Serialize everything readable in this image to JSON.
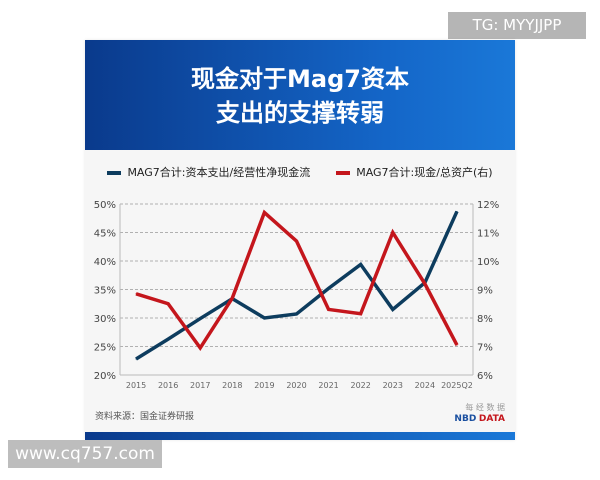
{
  "watermarks": {
    "top": "TG: MYYJJPP",
    "bottom": "www.cq757.com"
  },
  "chart_data": {
    "type": "line",
    "title_line1": "现金对于Mag7资本",
    "title_line2": "支出的支撑转弱",
    "categories": [
      "2015",
      "2016",
      "2017",
      "2018",
      "2019",
      "2020",
      "2021",
      "2022",
      "2023",
      "2024",
      "2025Q2"
    ],
    "series": [
      {
        "name": "MAG7合计:资本支出/经营性净现金流",
        "axis": "left",
        "color": "#0d3c5e",
        "values": [
          22.8,
          26.3,
          29.9,
          33.4,
          30.0,
          30.7,
          35.2,
          39.4,
          31.5,
          36.2,
          48.7
        ]
      },
      {
        "name": "MAG7合计:现金/总资产(右)",
        "axis": "right",
        "color": "#c4161c",
        "values": [
          8.85,
          8.5,
          6.95,
          8.7,
          11.7,
          10.7,
          8.3,
          8.15,
          11.0,
          9.2,
          7.05
        ]
      }
    ],
    "ylim_left": [
      20,
      50
    ],
    "yticks_left": [
      "20%",
      "25%",
      "30%",
      "35%",
      "40%",
      "45%",
      "50%"
    ],
    "ylim_right": [
      6,
      12
    ],
    "yticks_right": [
      "6%",
      "7%",
      "8%",
      "9%",
      "10%",
      "11%",
      "12%"
    ],
    "grid": "horizontal dashed",
    "legend": "top",
    "source": "资料来源：国金证券研报"
  },
  "brand": {
    "cn": "每 经 数 据",
    "nbd": "NBD",
    "data": "DATA"
  }
}
